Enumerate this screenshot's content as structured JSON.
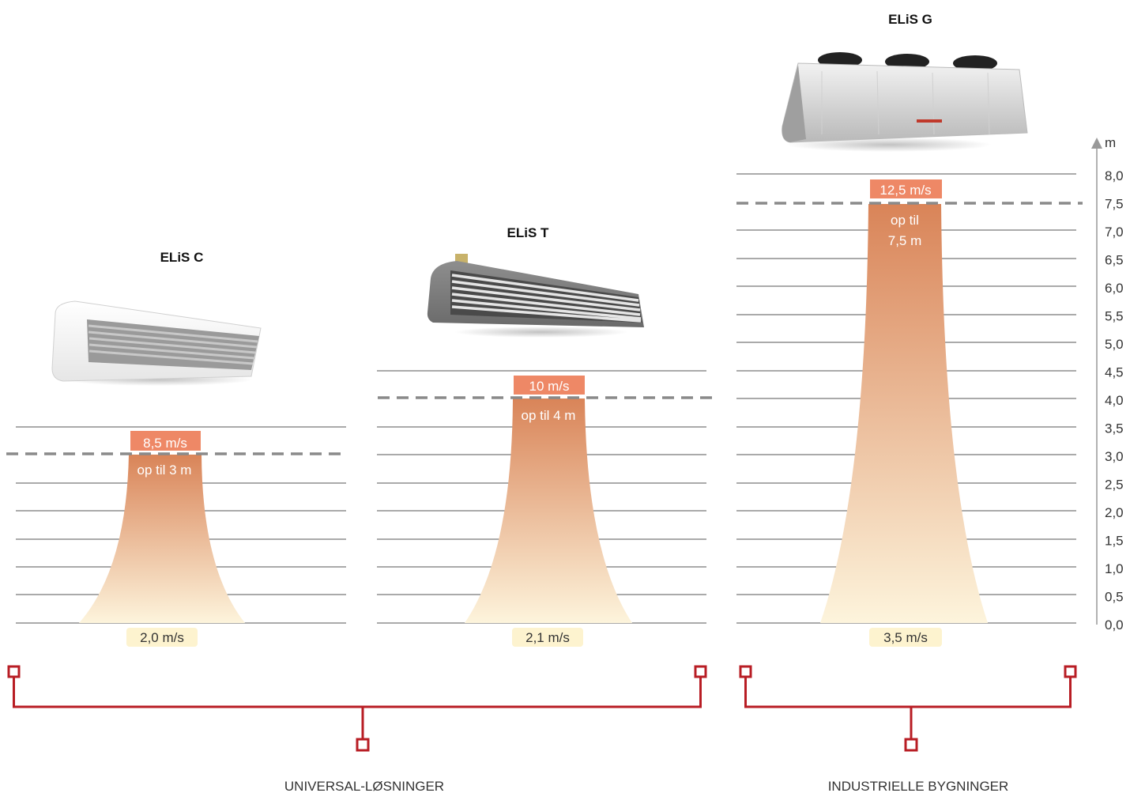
{
  "unit": "m",
  "scale_labels": [
    "0,0",
    "0,5",
    "1,0",
    "1,5",
    "2,0",
    "2,5",
    "3,0",
    "3,5",
    "4,0",
    "4,5",
    "5,0",
    "5,5",
    "6,0",
    "6,5",
    "7,0",
    "7,5",
    "8,0"
  ],
  "colors": {
    "grid": "#555555",
    "dash": "#8a8a8a",
    "velocity_badge": "#ee8866",
    "plume_top": "#d98458",
    "plume_bottom": "#fdf4dc",
    "base_badge": "#fdf3cf",
    "bracket": "#b81d24",
    "axis": "#999999"
  },
  "products": [
    {
      "name": "ELiS C",
      "icon": "air-curtain-white-icon",
      "velocity_label": "8,5 m/s",
      "reach_label": "op til 3 m",
      "reach_m": 3.0,
      "base_label": "2,0 m/s"
    },
    {
      "name": "ELiS T",
      "icon": "air-curtain-grey-icon",
      "velocity_label": "10 m/s",
      "reach_label": "op til 4 m",
      "reach_m": 4.0,
      "base_label": "2,1 m/s"
    },
    {
      "name": "ELiS G",
      "icon": "air-curtain-industrial-icon",
      "velocity_label": "12,5 m/s",
      "reach_label": "op til\n7,5 m",
      "reach_m": 7.5,
      "base_label": "3,5 m/s"
    }
  ],
  "groups": [
    {
      "label": "UNIVERSAL-LØSNINGER"
    },
    {
      "label": "INDUSTRIELLE BYGNINGER"
    }
  ]
}
